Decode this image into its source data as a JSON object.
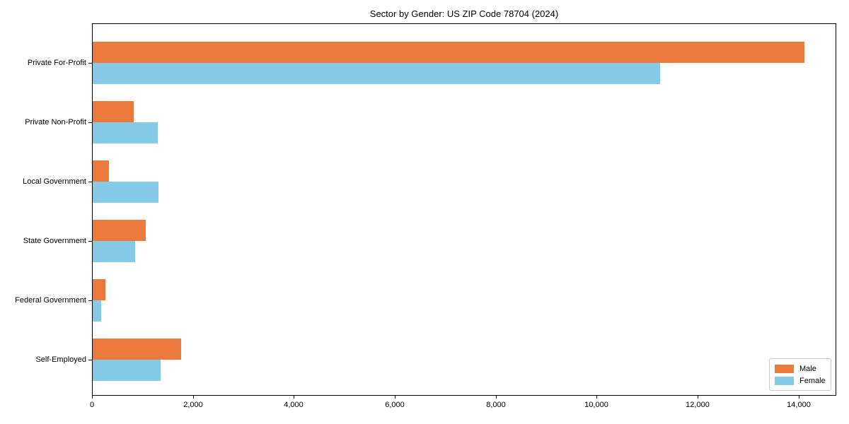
{
  "chart_data": {
    "type": "bar",
    "orientation": "horizontal",
    "title": "Sector by Gender: US ZIP Code 78704 (2024)",
    "categories": [
      "Private For-Profit",
      "Private Non-Profit",
      "Local Government",
      "State Government",
      "Federal Government",
      "Self-Employed"
    ],
    "series": [
      {
        "name": "Male",
        "color": "#ec7a3c",
        "values": [
          14100,
          810,
          320,
          1050,
          250,
          1750
        ]
      },
      {
        "name": "Female",
        "color": "#85cbe6",
        "values": [
          11250,
          1290,
          1310,
          840,
          175,
          1350
        ]
      }
    ],
    "xlabel": "",
    "ylabel": "",
    "xlim": [
      0,
      14750
    ],
    "xticks": [
      0,
      2000,
      4000,
      6000,
      8000,
      10000,
      12000,
      14000
    ],
    "grid": false,
    "legend_position": "lower right",
    "colors": {
      "male": "#ec7a3c",
      "female": "#85cbe6",
      "axis": "#000000",
      "legend_border": "#cccccc",
      "background": "#ffffff"
    }
  }
}
